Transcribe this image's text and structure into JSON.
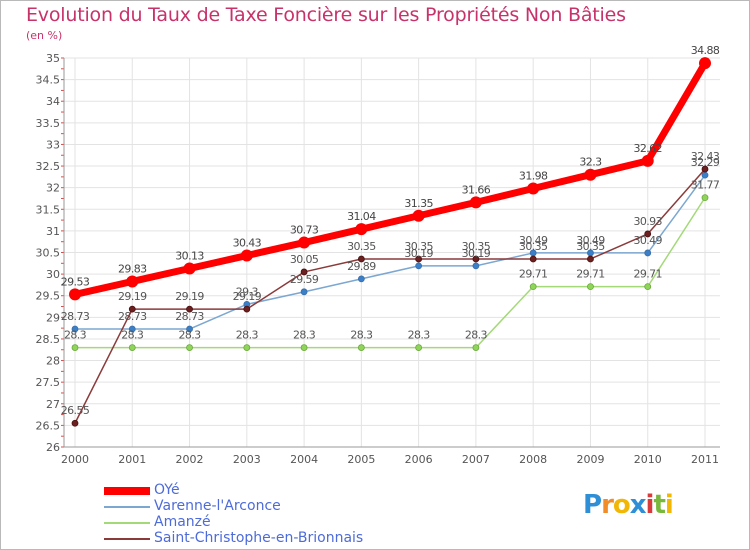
{
  "chart_data": {
    "type": "line",
    "title": "Evolution du Taux de Taxe Foncière sur les Propriétés Non Bâties",
    "unit_label": "(en %)",
    "xlabel": "",
    "ylabel": "",
    "ylim": [
      26,
      35
    ],
    "y_ticks": [
      "26",
      "26.5",
      "27",
      "27.5",
      "28",
      "28.5",
      "29",
      "29.5",
      "30",
      "30.5",
      "31",
      "31.5",
      "32",
      "32.5",
      "33",
      "33.5",
      "34",
      "34.5",
      "35"
    ],
    "categories": [
      "2000",
      "2001",
      "2002",
      "2003",
      "2004",
      "2005",
      "2006",
      "2007",
      "2008",
      "2009",
      "2010",
      "2011"
    ],
    "series": [
      {
        "name": "OYé",
        "color": "#ff0000",
        "values": [
          29.53,
          29.83,
          30.13,
          30.43,
          30.73,
          31.04,
          31.35,
          31.66,
          31.98,
          32.3,
          32.62,
          34.88
        ],
        "labels": [
          "29.53",
          "29.83",
          "30.13",
          "30.43",
          "30.73",
          "31.04",
          "31.35",
          "31.66",
          "31.98",
          "32.3",
          "32.62",
          "34.88"
        ]
      },
      {
        "name": "Varenne-l'Arconce",
        "color": "#7ba7d1",
        "values": [
          28.73,
          28.73,
          28.73,
          29.3,
          29.59,
          29.89,
          30.19,
          30.19,
          30.49,
          30.49,
          30.49,
          32.29
        ],
        "labels": [
          "28.73",
          "28.73",
          "28.73",
          "29.3",
          "29.59",
          "29.89",
          "30.19",
          "30.19",
          "30.49",
          "30.49",
          "30.49",
          "32.29"
        ]
      },
      {
        "name": "Amanzé",
        "color": "#a3d977",
        "values": [
          28.3,
          28.3,
          28.3,
          28.3,
          28.3,
          28.3,
          28.3,
          28.3,
          29.71,
          29.71,
          29.71,
          31.77
        ],
        "labels": [
          "28.3",
          "28.3",
          "28.3",
          "28.3",
          "28.3",
          "28.3",
          "28.3",
          "28.3",
          "29.71",
          "29.71",
          "29.71",
          "31.77"
        ]
      },
      {
        "name": "Saint-Christophe-en-Brionnais",
        "color": "#8b3a3a",
        "values": [
          26.55,
          29.19,
          29.19,
          29.19,
          30.05,
          30.35,
          30.35,
          30.35,
          30.35,
          30.35,
          30.93,
          32.43
        ],
        "labels": [
          "26.55",
          "29.19",
          "29.19",
          "29.19",
          "30.05",
          "30.35",
          "30.35",
          "30.35",
          "30.35",
          "30.35",
          "30.93",
          "32.43"
        ]
      }
    ]
  },
  "logo": {
    "letters": [
      "P",
      "r",
      "o",
      "x",
      "i",
      "t",
      "i"
    ],
    "colors": [
      "#2e8fd6",
      "#f28c28",
      "#f2b705",
      "#2e8fd6",
      "#d93a3a",
      "#78b83a",
      "#f2b705"
    ]
  }
}
